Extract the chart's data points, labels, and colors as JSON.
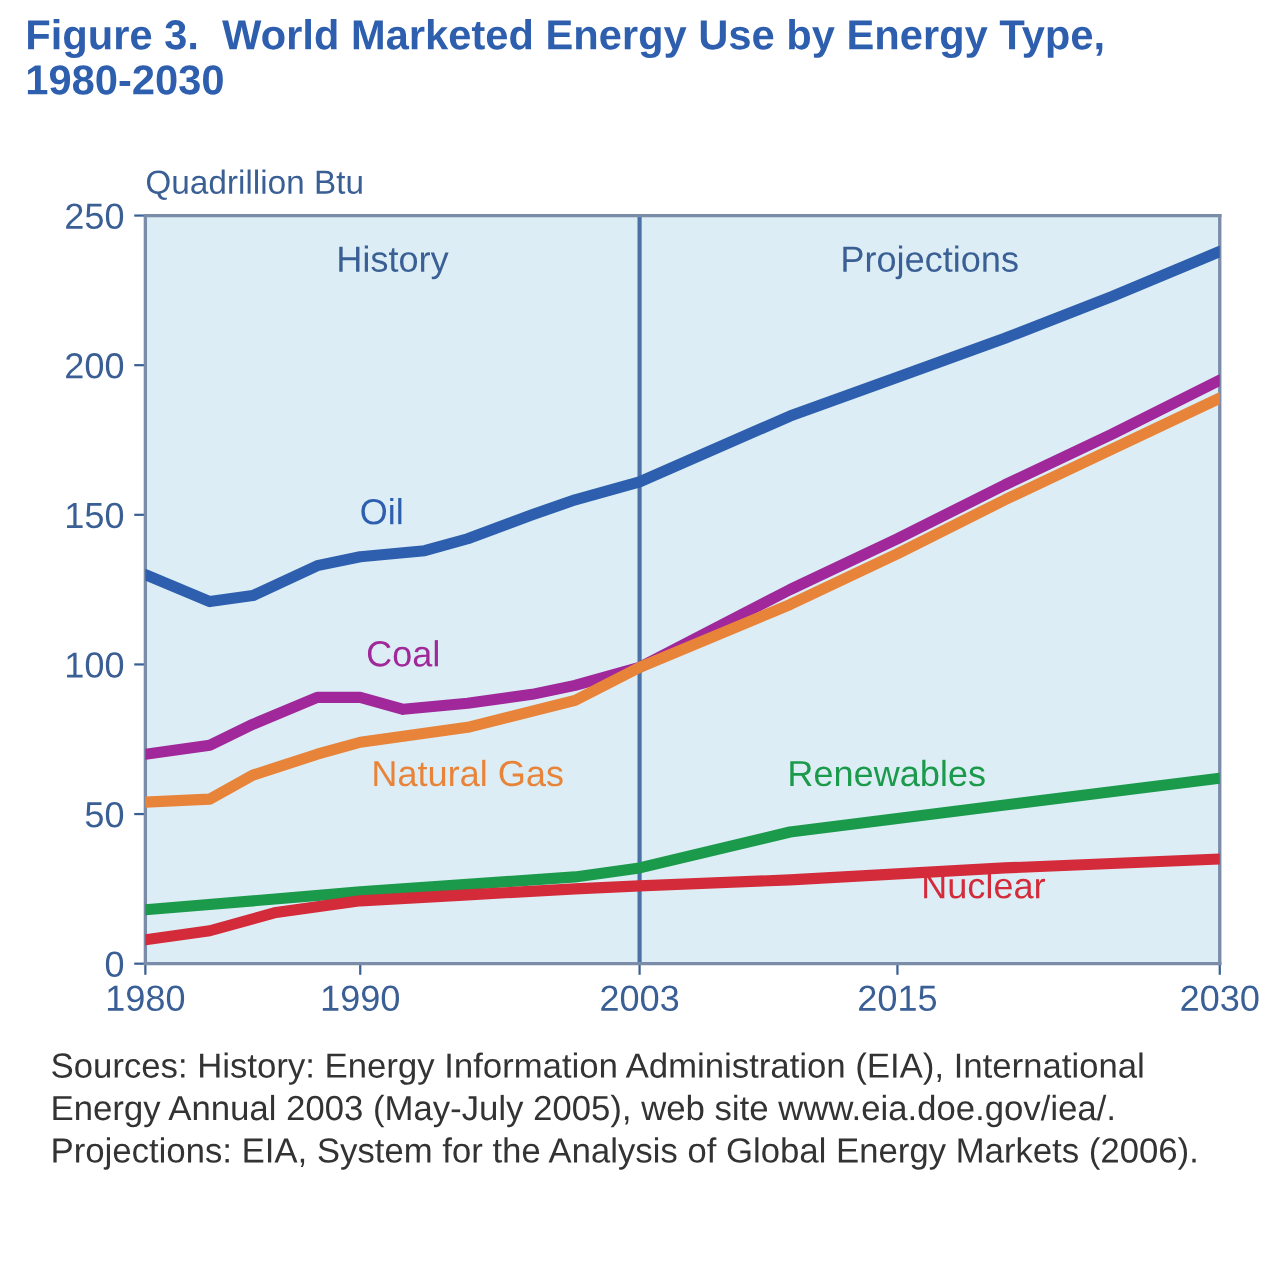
{
  "chart_data": {
    "type": "line",
    "title": "Figure 3.  World Marketed Energy Use by Energy Type, 1980-2030",
    "ylabel": "Quadrillion Btu",
    "series": [
      {
        "name": "Oil",
        "color": "#2e5fae",
        "x": [
          1980,
          1983,
          1985,
          1988,
          1990,
          1993,
          1995,
          1998,
          2000,
          2003,
          2010,
          2015,
          2020,
          2025,
          2030
        ],
        "values": [
          130,
          121,
          123,
          133,
          136,
          138,
          142,
          150,
          155,
          161,
          183,
          196,
          209,
          223,
          238
        ]
      },
      {
        "name": "Coal",
        "color": "#a0289a",
        "x": [
          1980,
          1983,
          1985,
          1988,
          1990,
          1992,
          1995,
          1998,
          2000,
          2003,
          2010,
          2015,
          2020,
          2025,
          2030
        ],
        "values": [
          70,
          73,
          80,
          89,
          89,
          85,
          87,
          90,
          93,
          99,
          125,
          142,
          160,
          177,
          195
        ]
      },
      {
        "name": "Natural Gas",
        "color": "#e8843a",
        "x": [
          1980,
          1983,
          1985,
          1988,
          1990,
          1995,
          2000,
          2003,
          2010,
          2015,
          2020,
          2025,
          2030
        ],
        "values": [
          54,
          55,
          63,
          70,
          74,
          79,
          88,
          99,
          120,
          137,
          155,
          172,
          189
        ]
      },
      {
        "name": "Renewables",
        "color": "#1a9a4a",
        "x": [
          1980,
          1990,
          2000,
          2003,
          2010,
          2020,
          2030
        ],
        "values": [
          18,
          24,
          29,
          32,
          44,
          53,
          62
        ]
      },
      {
        "name": "Nuclear",
        "color": "#d42b3a",
        "x": [
          1980,
          1983,
          1986,
          1990,
          1995,
          2000,
          2003,
          2010,
          2020,
          2030
        ],
        "values": [
          8,
          11,
          17,
          21,
          23,
          25,
          26,
          28,
          32,
          35
        ]
      }
    ],
    "xlim": [
      1980,
      2030
    ],
    "xticks": [
      1980,
      1990,
      2003,
      2015,
      2030
    ],
    "ylim": [
      0,
      250
    ],
    "yticks": [
      0,
      50,
      100,
      150,
      200,
      250
    ],
    "bands": [
      {
        "axis": "x",
        "from": 1980,
        "to": 2003,
        "label": "History",
        "color": "#dcedf5"
      },
      {
        "axis": "x",
        "from": 2003,
        "to": 2030,
        "label": "Projections",
        "color": "#dcedf5"
      }
    ],
    "ref_lines": [
      {
        "axis": "x",
        "value": 2003,
        "color": "#4a72a8"
      }
    ],
    "grid": false,
    "legend": false,
    "annotations": [
      "Sources: History: Energy Information Administration (EIA), International Energy Annual 2003 (May-July 2005), web site www.eia.doe.gov/iea/. Projections: EIA, System for the Analysis of Global Energy Markets (2006)."
    ]
  }
}
